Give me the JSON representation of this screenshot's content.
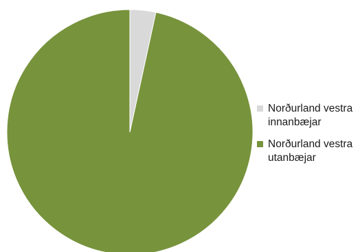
{
  "chart_data": {
    "type": "pie",
    "title": "",
    "legend_position": "right",
    "slices": [
      {
        "label_line1": "Norðurland vestra",
        "label_line2": "innanbæjar",
        "value": 3.4,
        "color": "#d9d9d9"
      },
      {
        "label_line1": "Norðurland vestra",
        "label_line2": "utanbæjar",
        "value": 96.6,
        "color": "#77933c"
      }
    ]
  }
}
